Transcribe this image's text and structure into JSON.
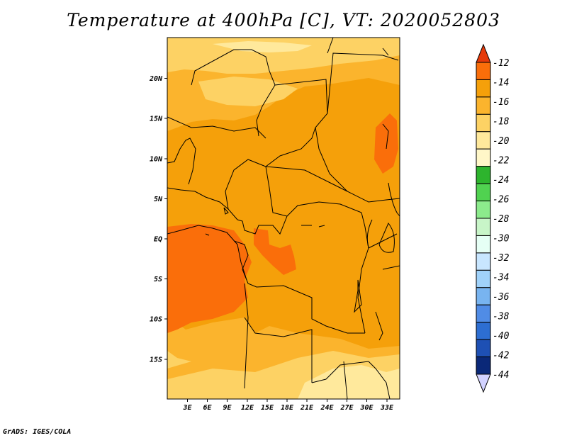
{
  "title": "Temperature at 400hPa [C], VT: 2020052803",
  "credit": "GrADS: IGES/COLA",
  "map": {
    "lon_labels": [
      "3E",
      "6E",
      "9E",
      "12E",
      "15E",
      "18E",
      "21E",
      "24E",
      "27E",
      "30E",
      "33E"
    ],
    "lat_labels": [
      "20N",
      "15N",
      "10N",
      "5N",
      "EQ",
      "5S",
      "10S",
      "15S"
    ]
  },
  "colorbar": {
    "labels": [
      "-12",
      "-14",
      "-16",
      "-18",
      "-20",
      "-22",
      "-24",
      "-26",
      "-28",
      "-30",
      "-32",
      "-34",
      "-36",
      "-38",
      "-40",
      "-42",
      "-44"
    ],
    "colors": [
      "#e63a0a",
      "#fa6e0a",
      "#f5a00a",
      "#fbb42d",
      "#fdd264",
      "#ffe99c",
      "#fff7c8",
      "#2db42d",
      "#50d250",
      "#8ceb8c",
      "#c8f5c8",
      "#e6fff5",
      "#c8e6ff",
      "#a0d2fa",
      "#78b4f0",
      "#508ce6",
      "#2d6ed2",
      "#1e50b4",
      "#0a2878",
      "#d2d2ff"
    ]
  },
  "palette": {
    "t12_14": "#fa6e0a",
    "t14_16": "#f5a00a",
    "t16_18": "#fbb42d",
    "t18_20": "#fdd264",
    "t20_22": "#ffe99c"
  }
}
